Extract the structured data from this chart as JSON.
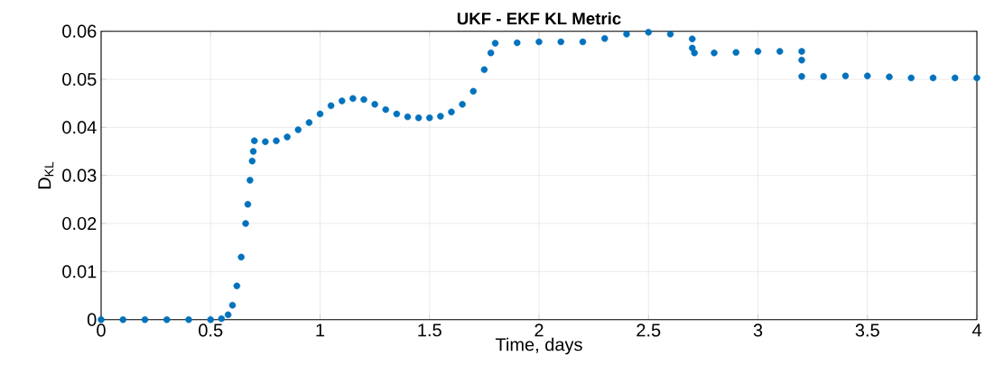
{
  "chart_data": {
    "type": "scatter",
    "title": "UKF - EKF KL Metric",
    "xlabel": "Time, days",
    "ylabel": "D$_{KL}$",
    "xlim": [
      0,
      4
    ],
    "ylim": [
      0,
      0.06
    ],
    "xticks": [
      0,
      0.5,
      1,
      1.5,
      2,
      2.5,
      3,
      3.5,
      4
    ],
    "yticks": [
      0,
      0.01,
      0.02,
      0.03,
      0.04,
      0.05,
      0.06
    ],
    "grid": true,
    "marker": "circle",
    "x": [
      0,
      0.1,
      0.2,
      0.3,
      0.4,
      0.5,
      0.55,
      0.58,
      0.6,
      0.62,
      0.64,
      0.66,
      0.67,
      0.68,
      0.69,
      0.695,
      0.7,
      0.75,
      0.8,
      0.85,
      0.9,
      0.95,
      1.0,
      1.05,
      1.1,
      1.15,
      1.2,
      1.25,
      1.3,
      1.35,
      1.4,
      1.45,
      1.5,
      1.55,
      1.6,
      1.65,
      1.7,
      1.75,
      1.78,
      1.8,
      1.9,
      2.0,
      2.1,
      2.2,
      2.3,
      2.4,
      2.5,
      2.6,
      2.7,
      2.7,
      2.71,
      2.8,
      2.9,
      3.0,
      3.1,
      3.2,
      3.2,
      3.2,
      3.3,
      3.4,
      3.5,
      3.6,
      3.7,
      3.8,
      3.9,
      4.0
    ],
    "series": [
      {
        "color": "#0072bd",
        "values": [
          0,
          0,
          0,
          0,
          0,
          0,
          0.0002,
          0.001,
          0.003,
          0.007,
          0.013,
          0.02,
          0.024,
          0.029,
          0.033,
          0.035,
          0.0372,
          0.037,
          0.0372,
          0.038,
          0.0395,
          0.041,
          0.0428,
          0.0445,
          0.0455,
          0.046,
          0.0458,
          0.0448,
          0.0437,
          0.0428,
          0.0422,
          0.042,
          0.042,
          0.0423,
          0.0432,
          0.0448,
          0.0475,
          0.052,
          0.0555,
          0.0575,
          0.0576,
          0.0578,
          0.0578,
          0.0578,
          0.0585,
          0.0594,
          0.0598,
          0.0594,
          0.0584,
          0.0565,
          0.0555,
          0.0555,
          0.0556,
          0.0558,
          0.0558,
          0.0558,
          0.054,
          0.0506,
          0.0506,
          0.0507,
          0.0507,
          0.0505,
          0.0503,
          0.0503,
          0.0503,
          0.0503
        ]
      }
    ]
  }
}
